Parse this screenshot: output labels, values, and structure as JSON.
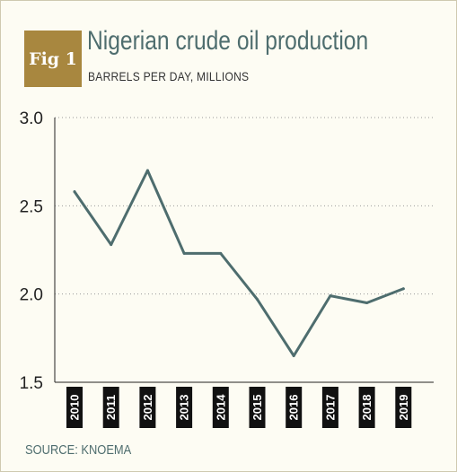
{
  "figure_label": "Fig 1",
  "colors": {
    "badge": "#a8873f",
    "line": "#4e6d6e",
    "title": "#4e6d6e",
    "tick_box": "#111111",
    "background": "#fdfcf3"
  },
  "chart_data": {
    "type": "line",
    "title": "Nigerian crude oil production",
    "subtitle": "BARRELS PER DAY, MILLIONS",
    "source": "SOURCE: KNOEMA",
    "xlabel": "",
    "ylabel": "",
    "categories": [
      "2010",
      "2011",
      "2012",
      "2013",
      "2014",
      "2015",
      "2016",
      "2017",
      "2018",
      "2019"
    ],
    "series": [
      {
        "values": [
          2.58,
          2.28,
          2.7,
          2.23,
          2.23,
          1.97,
          1.65,
          1.99,
          1.95,
          2.03
        ]
      }
    ],
    "ylim": [
      1.5,
      3.0
    ],
    "yticks": [
      "3.0",
      "2.5",
      "2.0",
      "1.5"
    ],
    "ytick_values": [
      3.0,
      2.5,
      2.0,
      1.5
    ],
    "grid": "horizontal dotted",
    "legend": "none"
  }
}
